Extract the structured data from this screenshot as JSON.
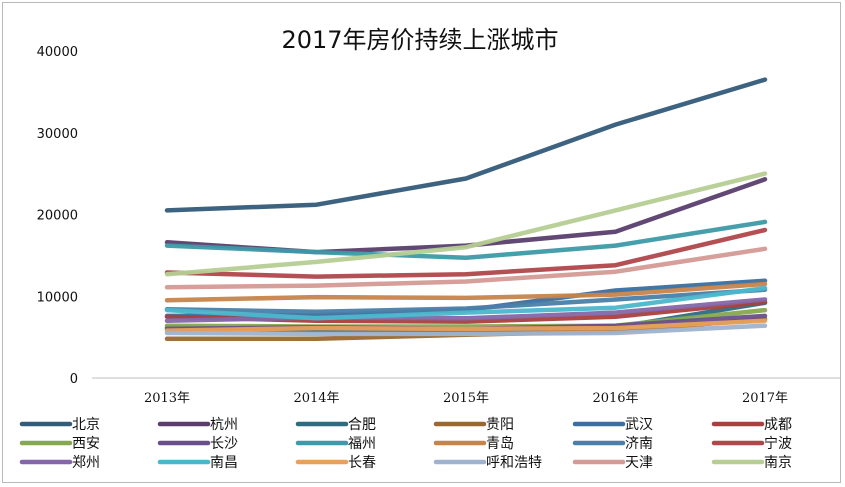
{
  "chart_data": {
    "type": "line",
    "title": "2017年房价持续上涨城市",
    "categories": [
      "2013年",
      "2014年",
      "2015年",
      "2016年",
      "2017年"
    ],
    "ylim": [
      0,
      40000
    ],
    "yticks": [
      0,
      10000,
      20000,
      30000,
      40000
    ],
    "grid": false,
    "legend": "bottom",
    "series": [
      {
        "name": "北京",
        "color": "#335b7a",
        "values": [
          20500,
          21200,
          24400,
          31000,
          36500
        ]
      },
      {
        "name": "杭州",
        "color": "#5a3f6e",
        "values": [
          16600,
          15400,
          16200,
          17900,
          24300
        ]
      },
      {
        "name": "合肥",
        "color": "#2c6b80",
        "values": [
          6200,
          5800,
          5600,
          6200,
          9200
        ]
      },
      {
        "name": "贵阳",
        "color": "#9a6830",
        "values": [
          4800,
          4800,
          5300,
          5700,
          7200
        ]
      },
      {
        "name": "武汉",
        "color": "#3a6fa0",
        "values": [
          7600,
          7700,
          8300,
          10700,
          11900
        ]
      },
      {
        "name": "成都",
        "color": "#a9403d",
        "values": [
          7500,
          7000,
          6900,
          7500,
          9300
        ]
      },
      {
        "name": "西安",
        "color": "#86a850",
        "values": [
          6400,
          6300,
          6300,
          6400,
          8300
        ]
      },
      {
        "name": "长沙",
        "color": "#6a4f8a",
        "values": [
          6000,
          6200,
          6000,
          6400,
          7600
        ]
      },
      {
        "name": "福州",
        "color": "#3d9aa8",
        "values": [
          16200,
          15400,
          14700,
          16200,
          19100
        ]
      },
      {
        "name": "青岛",
        "color": "#c7844a",
        "values": [
          9500,
          9900,
          9800,
          10200,
          11500
        ]
      },
      {
        "name": "济南",
        "color": "#4a7fa8",
        "values": [
          8400,
          8100,
          8500,
          9600,
          10800
        ]
      },
      {
        "name": "宁波",
        "color": "#b0474a",
        "values": [
          12900,
          12400,
          12700,
          13800,
          18100
        ]
      },
      {
        "name": "郑州",
        "color": "#8566a8",
        "values": [
          7000,
          7400,
          7300,
          8000,
          9600
        ]
      },
      {
        "name": "南昌",
        "color": "#4bb7cc",
        "values": [
          8300,
          7300,
          8000,
          8600,
          11000
        ]
      },
      {
        "name": "长春",
        "color": "#e8a05a",
        "values": [
          5800,
          6100,
          6000,
          6100,
          7000
        ]
      },
      {
        "name": "呼和浩特",
        "color": "#9fb3cf",
        "values": [
          5500,
          5400,
          5400,
          5500,
          6400
        ]
      },
      {
        "name": "天津",
        "color": "#d49a95",
        "values": [
          11100,
          11300,
          11800,
          13000,
          15800
        ]
      },
      {
        "name": "南京",
        "color": "#b6cd93",
        "values": [
          12700,
          14200,
          16000,
          20500,
          25000
        ]
      }
    ]
  }
}
